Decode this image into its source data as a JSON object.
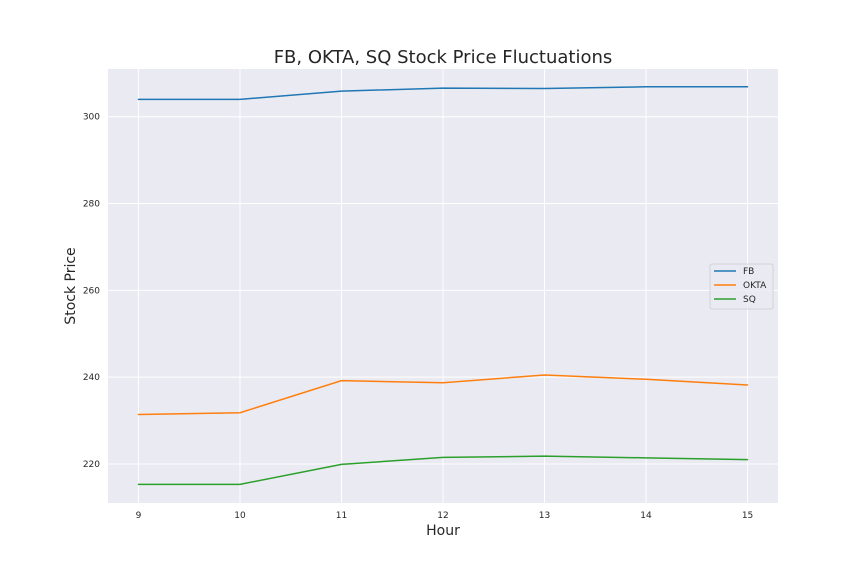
{
  "chart_data": {
    "type": "line",
    "title": "FB, OKTA, SQ Stock Price Fluctuations",
    "xlabel": "Hour",
    "ylabel": "Stock Price",
    "x": [
      9,
      10,
      11,
      12,
      13,
      14,
      15
    ],
    "xticks": [
      "9",
      "10",
      "11",
      "12",
      "13",
      "14",
      "15"
    ],
    "yticks": [
      "220",
      "240",
      "260",
      "280",
      "300"
    ],
    "xlim": [
      8.7,
      15.3
    ],
    "ylim": [
      211,
      311
    ],
    "grid": true,
    "legend_position": "center-right",
    "series": [
      {
        "name": "FB",
        "color": "#1f77b4",
        "values": [
          304.0,
          304.0,
          305.9,
          306.6,
          306.5,
          306.9,
          306.9
        ]
      },
      {
        "name": "OKTA",
        "color": "#ff7f0e",
        "values": [
          231.4,
          231.8,
          239.2,
          238.7,
          240.5,
          239.5,
          238.2
        ]
      },
      {
        "name": "SQ",
        "color": "#2ca02c",
        "values": [
          215.3,
          215.3,
          219.9,
          221.5,
          221.8,
          221.4,
          221.0
        ]
      }
    ]
  }
}
